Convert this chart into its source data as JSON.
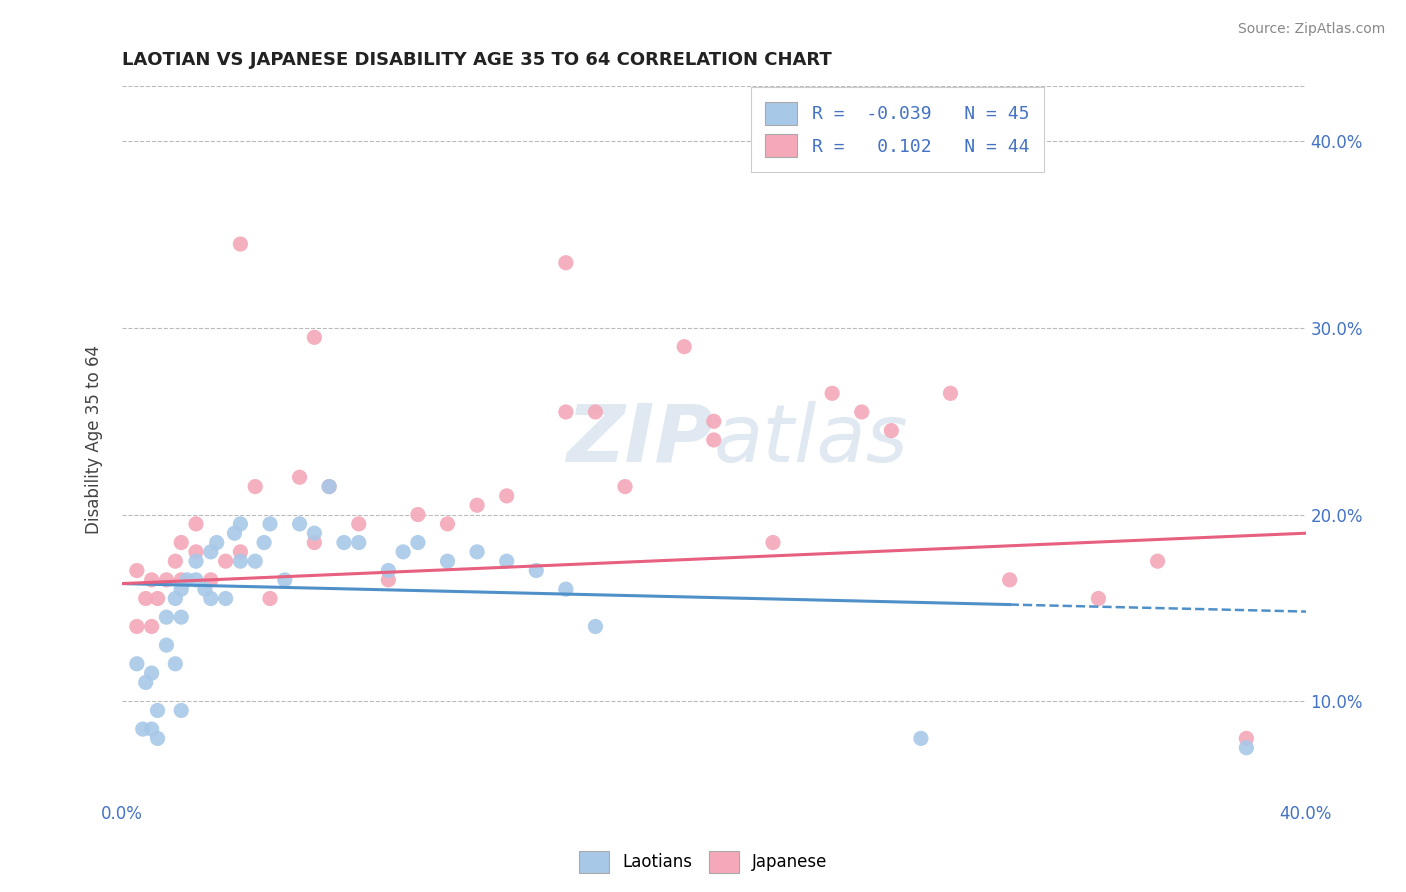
{
  "title": "LAOTIAN VS JAPANESE DISABILITY AGE 35 TO 64 CORRELATION CHART",
  "source_text": "Source: ZipAtlas.com",
  "ylabel": "Disability Age 35 to 64",
  "xlim": [
    0.0,
    0.4
  ],
  "ylim": [
    0.05,
    0.43
  ],
  "xticks": [
    0.0,
    0.05,
    0.1,
    0.15,
    0.2,
    0.25,
    0.3,
    0.35,
    0.4
  ],
  "yticks": [
    0.1,
    0.2,
    0.3,
    0.4
  ],
  "blue_r": -0.039,
  "blue_n": 45,
  "pink_r": 0.102,
  "pink_n": 44,
  "blue_color": "#A8C8E8",
  "pink_color": "#F4A8B8",
  "blue_line_color": "#5090C8",
  "pink_line_color": "#E86080",
  "watermark_color": "#C8D8E8",
  "legend_r_color": "#4472C4",
  "background_color": "#FFFFFF",
  "grid_color": "#BBBBBB",
  "blue_scatter_x": [
    0.005,
    0.008,
    0.01,
    0.01,
    0.012,
    0.015,
    0.015,
    0.018,
    0.018,
    0.02,
    0.02,
    0.022,
    0.025,
    0.025,
    0.028,
    0.03,
    0.03,
    0.032,
    0.035,
    0.038,
    0.04,
    0.04,
    0.045,
    0.048,
    0.05,
    0.055,
    0.06,
    0.065,
    0.07,
    0.075,
    0.08,
    0.09,
    0.095,
    0.1,
    0.11,
    0.12,
    0.13,
    0.14,
    0.15,
    0.16,
    0.007,
    0.012,
    0.02,
    0.27,
    0.38
  ],
  "blue_scatter_y": [
    0.12,
    0.11,
    0.115,
    0.085,
    0.095,
    0.13,
    0.145,
    0.155,
    0.12,
    0.16,
    0.145,
    0.165,
    0.165,
    0.175,
    0.16,
    0.18,
    0.155,
    0.185,
    0.155,
    0.19,
    0.195,
    0.175,
    0.175,
    0.185,
    0.195,
    0.165,
    0.195,
    0.19,
    0.215,
    0.185,
    0.185,
    0.17,
    0.18,
    0.185,
    0.175,
    0.18,
    0.175,
    0.17,
    0.16,
    0.14,
    0.085,
    0.08,
    0.095,
    0.08,
    0.075
  ],
  "pink_scatter_x": [
    0.005,
    0.008,
    0.01,
    0.012,
    0.015,
    0.018,
    0.02,
    0.025,
    0.025,
    0.03,
    0.035,
    0.04,
    0.045,
    0.05,
    0.06,
    0.065,
    0.07,
    0.08,
    0.09,
    0.1,
    0.11,
    0.12,
    0.13,
    0.15,
    0.16,
    0.17,
    0.19,
    0.2,
    0.22,
    0.24,
    0.25,
    0.26,
    0.3,
    0.35,
    0.38,
    0.005,
    0.01,
    0.02,
    0.04,
    0.065,
    0.15,
    0.2,
    0.28,
    0.33
  ],
  "pink_scatter_y": [
    0.17,
    0.155,
    0.165,
    0.155,
    0.165,
    0.175,
    0.165,
    0.18,
    0.195,
    0.165,
    0.175,
    0.18,
    0.215,
    0.155,
    0.22,
    0.185,
    0.215,
    0.195,
    0.165,
    0.2,
    0.195,
    0.205,
    0.21,
    0.255,
    0.255,
    0.215,
    0.29,
    0.24,
    0.185,
    0.265,
    0.255,
    0.245,
    0.165,
    0.175,
    0.08,
    0.14,
    0.14,
    0.185,
    0.345,
    0.295,
    0.335,
    0.25,
    0.265,
    0.155
  ],
  "blue_trend_x0": 0.0,
  "blue_trend_x1": 0.4,
  "blue_trend_y0": 0.163,
  "blue_trend_y1": 0.148,
  "pink_trend_x0": 0.0,
  "pink_trend_x1": 0.4,
  "pink_trend_y0": 0.163,
  "pink_trend_y1": 0.19
}
